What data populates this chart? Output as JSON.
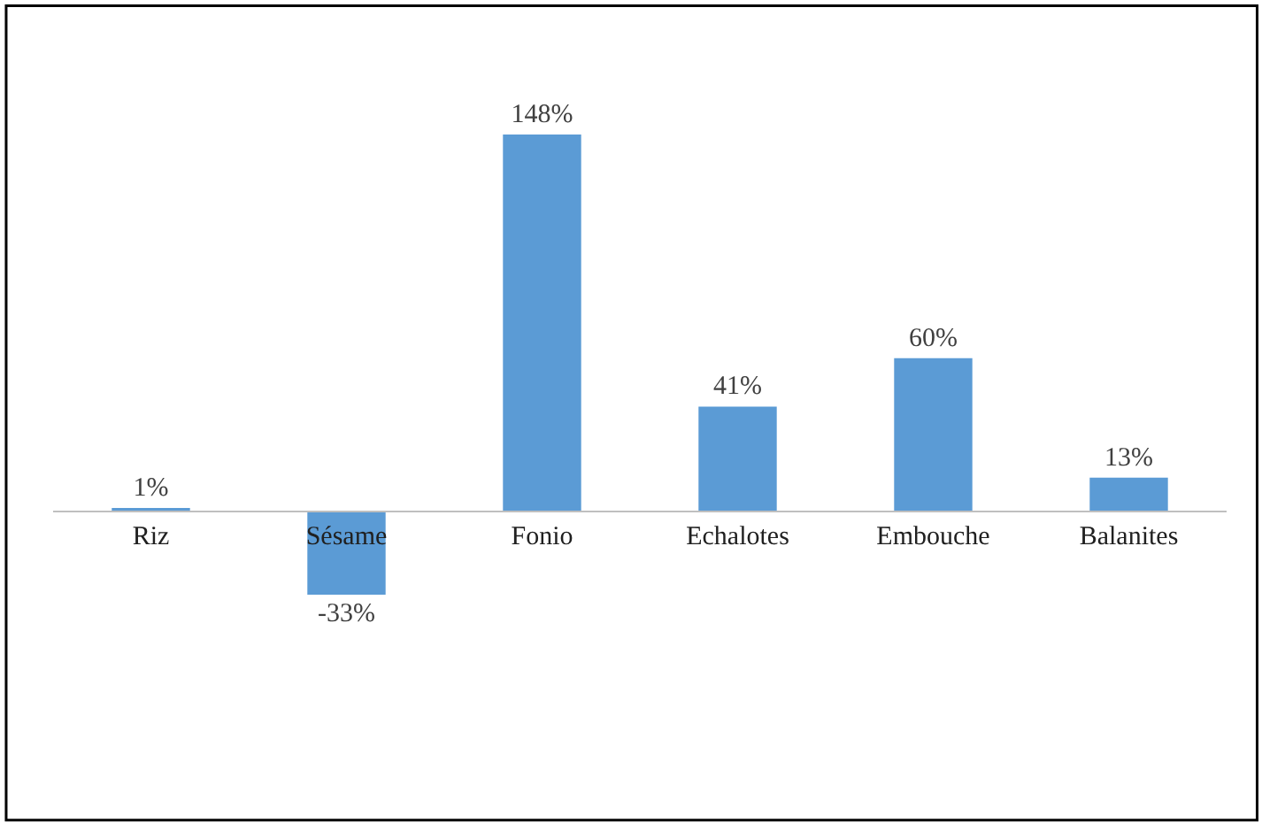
{
  "chart_data": {
    "type": "bar",
    "categories": [
      "Riz",
      "Sésame",
      "Fonio",
      "Echalotes",
      "Embouche",
      "Balanites"
    ],
    "values": [
      1,
      -33,
      148,
      41,
      60,
      13
    ],
    "value_labels": [
      "1%",
      "-33%",
      "148%",
      "41%",
      "60%",
      "13%"
    ],
    "color": "#5b9bd5"
  }
}
